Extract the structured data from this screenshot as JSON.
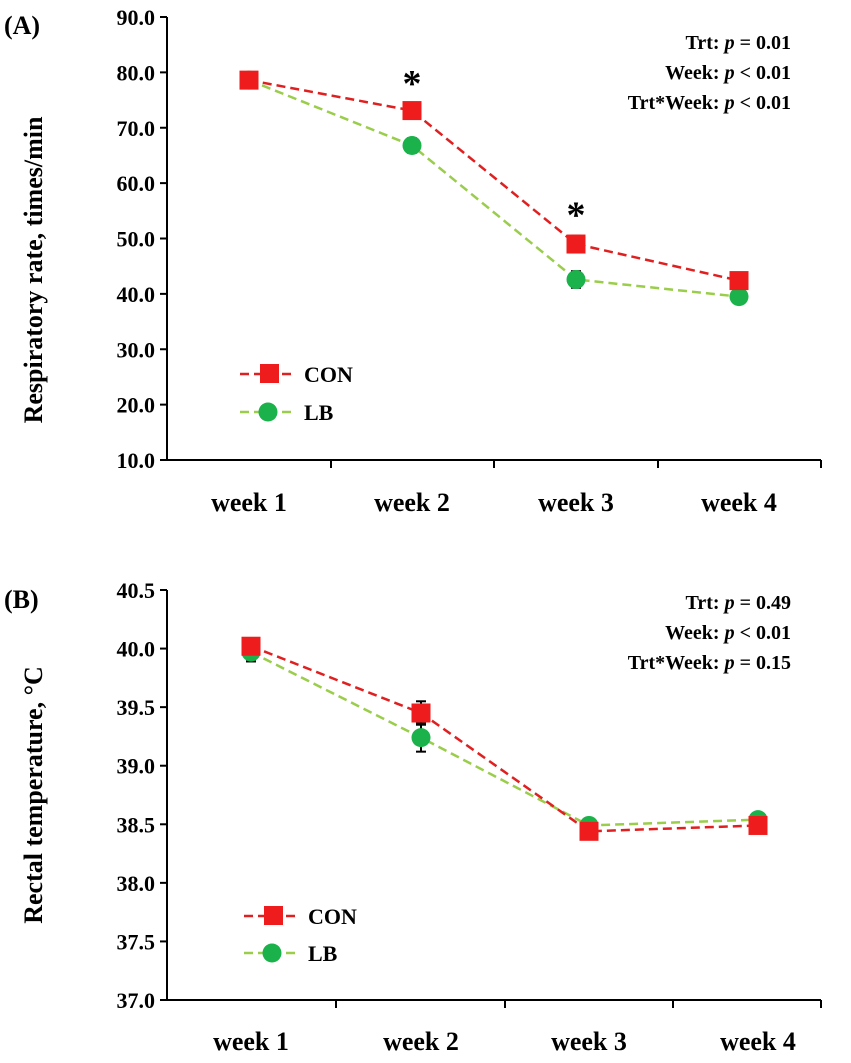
{
  "chart_data": [
    {
      "type": "line",
      "panel_label": "(A)",
      "ylabel": "Respiratory rate, times/min",
      "xlabel": "",
      "categories": [
        "week 1",
        "week 2",
        "week 3",
        "week 4"
      ],
      "ylim": [
        10,
        90
      ],
      "yticks": [
        "10.0",
        "20.0",
        "30.0",
        "40.0",
        "50.0",
        "60.0",
        "70.0",
        "80.0",
        "90.0"
      ],
      "ytick_values": [
        10,
        20,
        30,
        40,
        50,
        60,
        70,
        80,
        90
      ],
      "series": [
        {
          "name": "CON",
          "marker": "square",
          "color": "#ee1c1c",
          "line_color": "#e02020",
          "values": [
            78.6,
            73.1,
            49.0,
            42.4
          ],
          "errors": [
            0.9,
            1.2,
            1.5,
            0.9
          ]
        },
        {
          "name": "LB",
          "marker": "circle",
          "color": "#1cb24b",
          "line_color": "#9acd4a",
          "values": [
            78.6,
            66.8,
            42.6,
            39.5
          ],
          "errors": [
            0.9,
            1.3,
            1.5,
            0.7
          ]
        }
      ],
      "significance": [
        {
          "category": "week 2",
          "label": "*"
        },
        {
          "category": "week 3",
          "label": "*"
        }
      ],
      "stats": [
        {
          "name": "Trt:",
          "p": "p",
          "rel": "= 0.01"
        },
        {
          "name": "Week:",
          "p": "p",
          "rel": "< 0.01"
        },
        {
          "name": "Trt*Week:",
          "p": "p",
          "rel": "< 0.01"
        }
      ],
      "legend_position": "lower-left"
    },
    {
      "type": "line",
      "panel_label": "(B)",
      "ylabel": "Rectal temperature, °C",
      "xlabel": "",
      "categories": [
        "week 1",
        "week 2",
        "week 3",
        "week 4"
      ],
      "ylim": [
        37.0,
        40.5
      ],
      "yticks": [
        "37.0",
        "37.5",
        "38.0",
        "38.5",
        "39.0",
        "39.5",
        "40.0",
        "40.5"
      ],
      "ytick_values": [
        37.0,
        37.5,
        38.0,
        38.5,
        39.0,
        39.5,
        40.0,
        40.5
      ],
      "series": [
        {
          "name": "CON",
          "marker": "square",
          "color": "#ee1c1c",
          "line_color": "#e02020",
          "values": [
            40.02,
            39.45,
            38.44,
            38.49
          ],
          "errors": [
            0.06,
            0.1,
            0.05,
            0.04
          ]
        },
        {
          "name": "LB",
          "marker": "circle",
          "color": "#1cb24b",
          "line_color": "#9acd4a",
          "values": [
            39.97,
            39.24,
            38.49,
            38.54
          ],
          "errors": [
            0.08,
            0.12,
            0.05,
            0.04
          ]
        }
      ],
      "significance": [],
      "stats": [
        {
          "name": "Trt:",
          "p": "p",
          "rel": "= 0.49"
        },
        {
          "name": "Week:",
          "p": "p",
          "rel": "< 0.01"
        },
        {
          "name": "Trt*Week:",
          "p": "p",
          "rel": "= 0.15"
        }
      ],
      "legend_position": "lower-left"
    }
  ]
}
